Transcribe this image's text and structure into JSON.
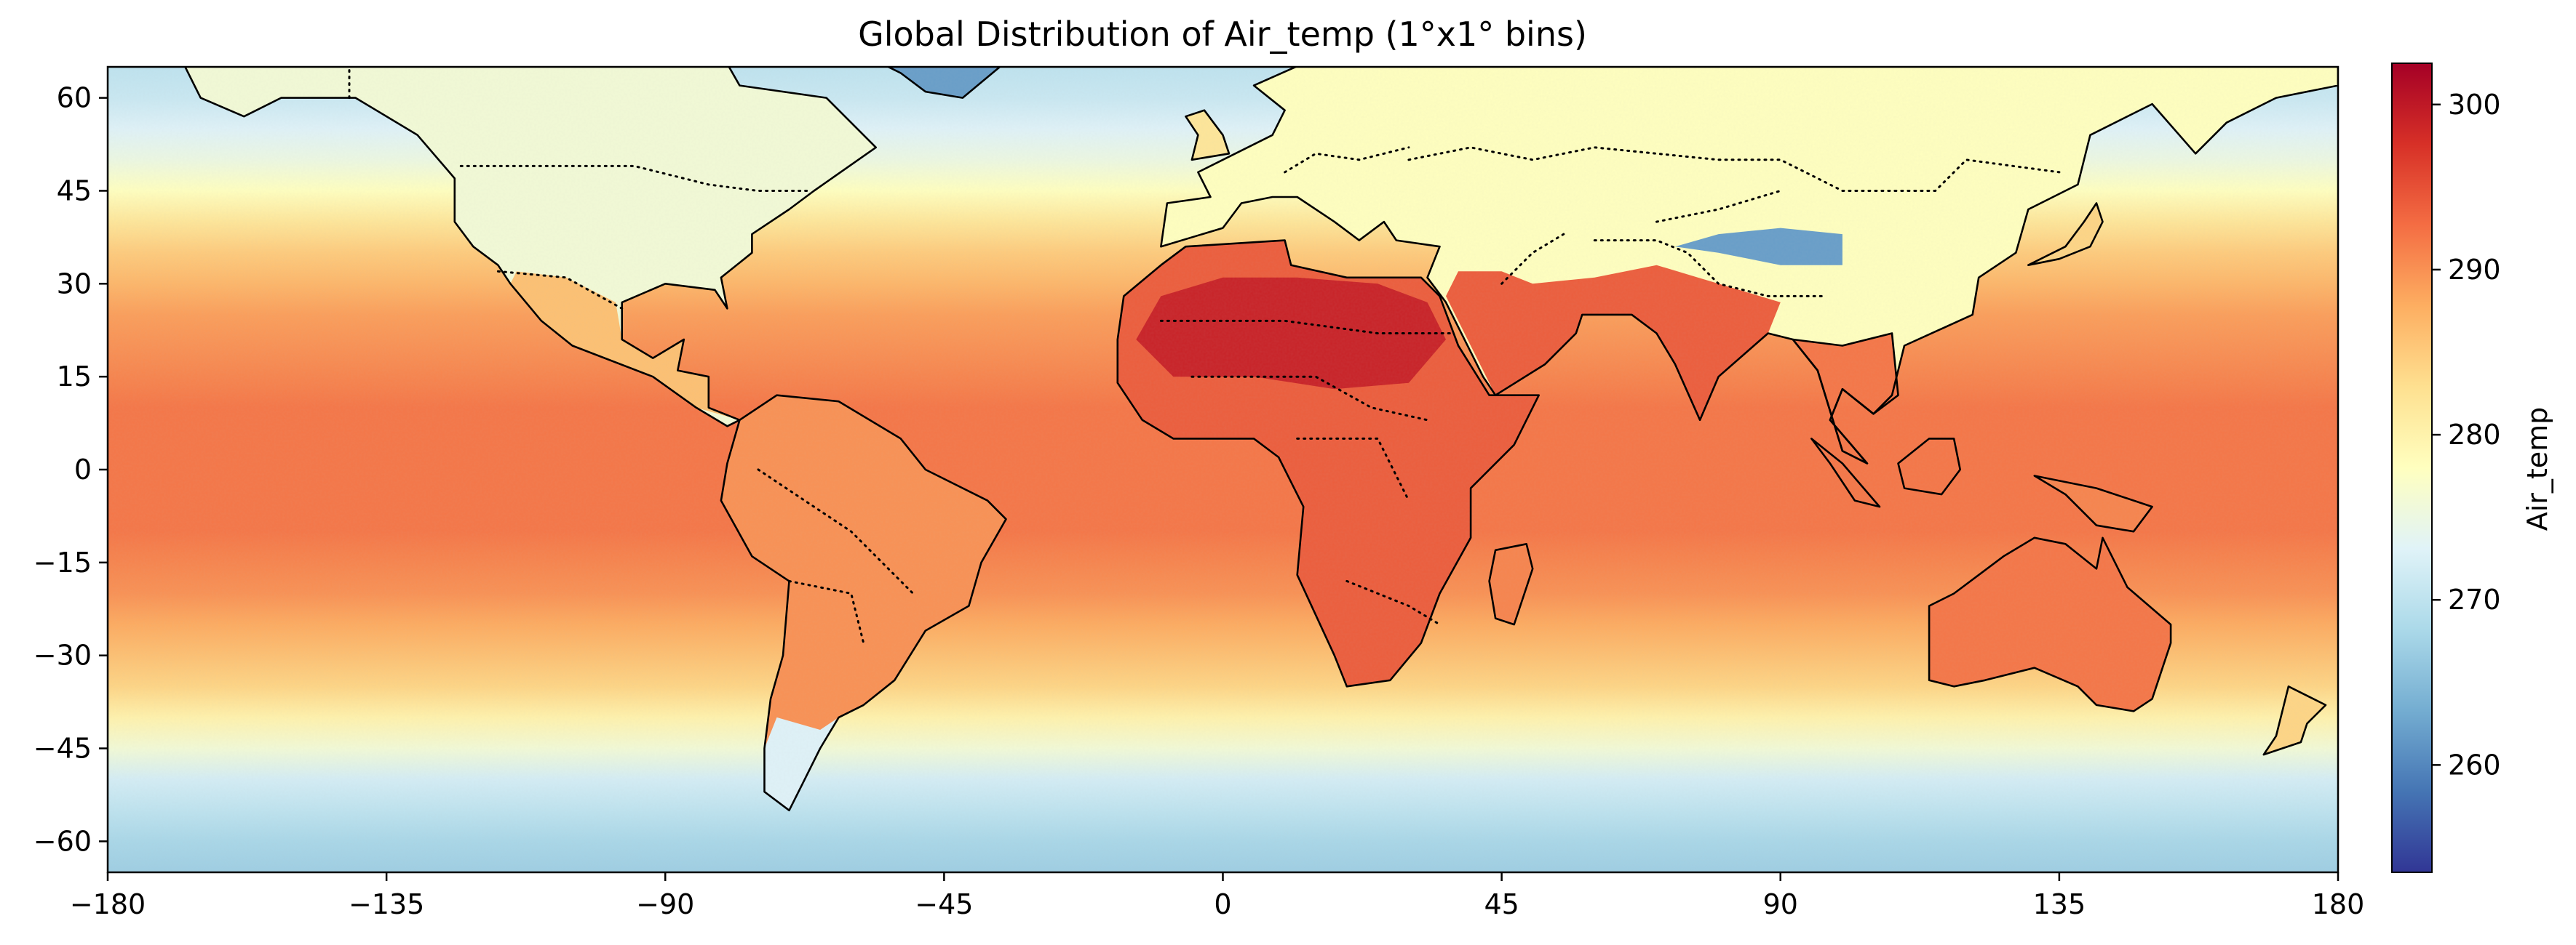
{
  "chart_data": {
    "type": "heatmap",
    "title": "Global Distribution of Air_temp (1°x1° bins)",
    "projection": "PlateCarree",
    "xlim": [
      -180,
      180
    ],
    "ylim": [
      -65,
      65
    ],
    "x_ticks": [
      -180,
      -135,
      -90,
      -45,
      0,
      45,
      90,
      135,
      180
    ],
    "y_ticks": [
      60,
      45,
      30,
      15,
      0,
      -15,
      -30,
      -45,
      -60
    ],
    "x_tick_labels": [
      "−180",
      "−135",
      "−90",
      "−45",
      "0",
      "45",
      "90",
      "135",
      "180"
    ],
    "y_tick_labels": [
      "60",
      "45",
      "30",
      "15",
      "0",
      "−15",
      "−30",
      "−45",
      "−60"
    ],
    "bin_size_deg": 1,
    "colormap": "RdYlBu_r",
    "colormap_stops": [
      "#313695",
      "#4575b4",
      "#74add1",
      "#abd9e9",
      "#e0f3f8",
      "#ffffbf",
      "#fee090",
      "#fdae61",
      "#f46d43",
      "#d73027",
      "#a50026"
    ],
    "colorbar": {
      "label": "Air_temp",
      "range": [
        253.5,
        302.5
      ],
      "ticks": [
        260,
        270,
        280,
        290,
        300
      ],
      "tick_labels": [
        "260",
        "270",
        "280",
        "290",
        "300"
      ]
    },
    "zonal_profile_ocean": {
      "lat": [
        -65,
        -60,
        -55,
        -50,
        -45,
        -40,
        -35,
        -30,
        -25,
        -20,
        -15,
        -10,
        -5,
        0,
        5,
        10,
        15,
        20,
        25,
        30,
        35,
        40,
        45,
        50,
        55,
        60,
        65
      ],
      "value": [
        267,
        268,
        270,
        272,
        276,
        280,
        284,
        286,
        288,
        290,
        291,
        292,
        292,
        292,
        292,
        292,
        291,
        290,
        289,
        287,
        285,
        282,
        278,
        275,
        273,
        271,
        270
      ]
    },
    "regional_features": [
      {
        "region": "Sahara",
        "approx_value": 299
      },
      {
        "region": "Arabian Peninsula",
        "approx_value": 298
      },
      {
        "region": "Tibetan Plateau",
        "approx_value": 262
      },
      {
        "region": "Andes",
        "approx_value": 270
      },
      {
        "region": "Australia interior",
        "approx_value": 292
      },
      {
        "region": "Antarctic margin",
        "approx_value": 265
      }
    ],
    "overlays": [
      "coastlines",
      "country borders (dotted)"
    ],
    "grid": false
  }
}
